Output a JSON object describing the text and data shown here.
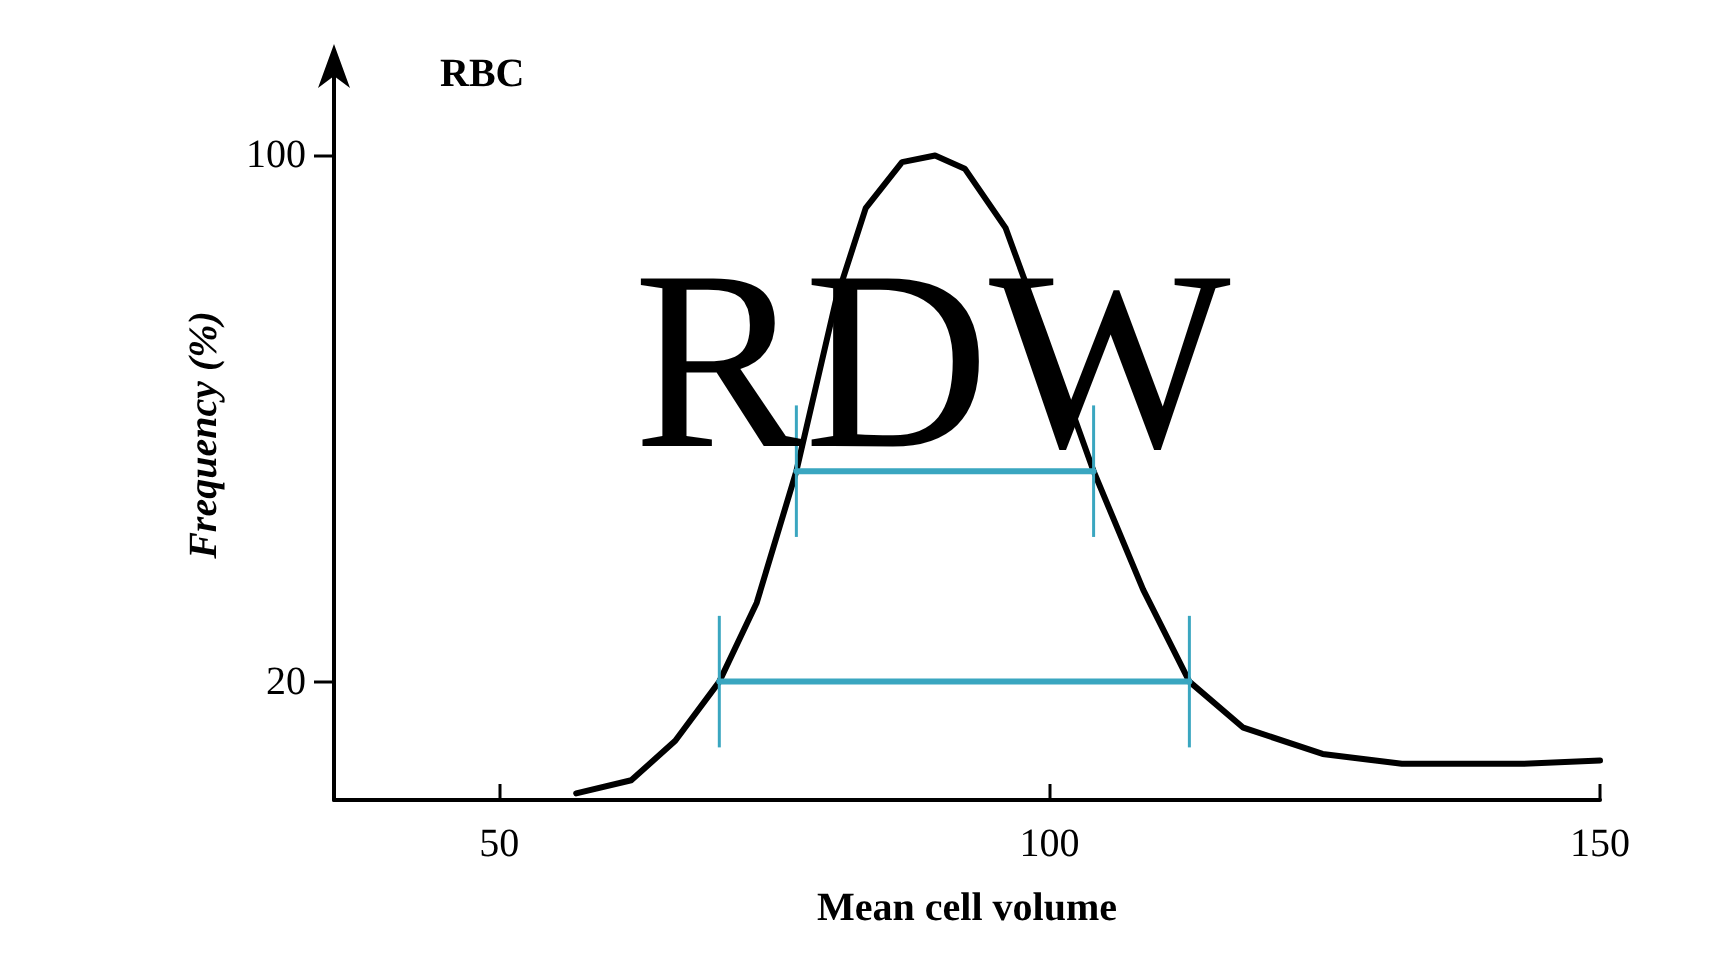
{
  "chart_data": {
    "type": "line",
    "title": "RBC",
    "xlabel": "Mean cell volume",
    "ylabel": "Frequency (%)",
    "xlim": [
      35,
      150
    ],
    "xticks": [
      50,
      100,
      150
    ],
    "ylim": [
      2,
      113
    ],
    "yticks": [
      20,
      100
    ],
    "grid": false,
    "marker": "none",
    "series": [
      {
        "color": "#000000",
        "x": [
          57,
          62,
          66,
          70,
          73.4,
          77,
          80.6,
          83.3,
          86.6,
          89.6,
          92.3,
          96,
          99.5,
          104,
          108.5,
          112.7,
          117.6,
          124.8,
          132,
          143,
          150
        ],
        "values": [
          3,
          5,
          11,
          20,
          32,
          52,
          78,
          92,
          99,
          100,
          98,
          89,
          73,
          52,
          34,
          20,
          13,
          9,
          7.5,
          7.5,
          8
        ]
      },
      {
        "color": "#3aa6c0",
        "x": [
          77,
          104
        ],
        "values": [
          52,
          52
        ],
        "errors": [
          10,
          10
        ]
      },
      {
        "color": "#3aa6c0",
        "x": [
          70,
          112.7
        ],
        "values": [
          20,
          20
        ],
        "errors": [
          10,
          10
        ]
      }
    ],
    "annotations": [
      "RDW"
    ]
  }
}
